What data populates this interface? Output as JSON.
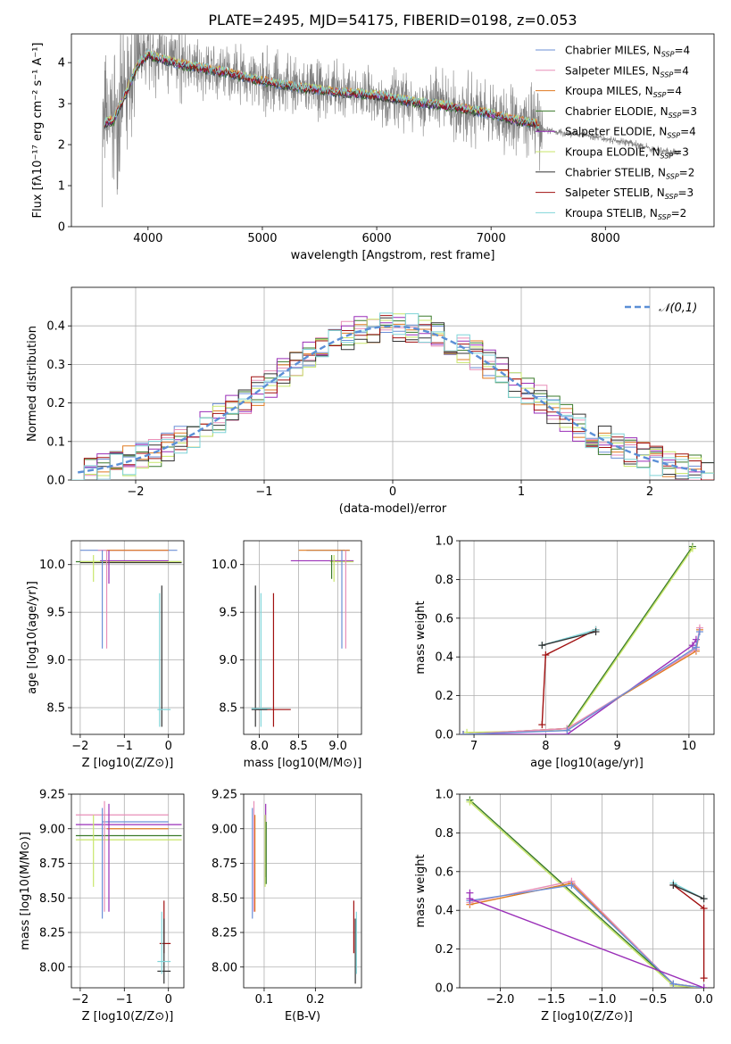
{
  "figure": {
    "title": "PLATE=2495, MJD=54175, FIBERID=0198, z=0.053"
  },
  "models": [
    {
      "name": "Chabrier MILES",
      "nssp": "4",
      "color": "#6b8fd6"
    },
    {
      "name": "Salpeter MILES",
      "nssp": "4",
      "color": "#e88fb8"
    },
    {
      "name": "Kroupa MILES",
      "nssp": "4",
      "color": "#e07a20"
    },
    {
      "name": "Chabrier ELODIE",
      "nssp": "3",
      "color": "#3a7a2a"
    },
    {
      "name": "Salpeter ELODIE",
      "nssp": "4",
      "color": "#9a2fb8"
    },
    {
      "name": "Kroupa ELODIE",
      "nssp": "3",
      "color": "#c8e66a"
    },
    {
      "name": "Chabrier STELIB",
      "nssp": "2",
      "color": "#333333"
    },
    {
      "name": "Salpeter STELIB",
      "nssp": "3",
      "color": "#a01010"
    },
    {
      "name": "Kroupa STELIB",
      "nssp": "2",
      "color": "#7fd4d8"
    }
  ],
  "chart_data": [
    {
      "id": "spectrum",
      "type": "line",
      "title": "PLATE=2495, MJD=54175, FIBERID=0198, z=0.053",
      "xlabel": "wavelength [Angstrom, rest frame]",
      "ylabel": "Flux [fλ10⁻¹⁷ erg cm⁻² s⁻¹ A⁻¹]",
      "xlim": [
        3330,
        8950
      ],
      "ylim": [
        0,
        4.7
      ],
      "xticks": [
        4000,
        5000,
        6000,
        7000,
        8000
      ],
      "yticks": [
        0,
        1,
        2,
        3,
        4
      ],
      "grid": false,
      "legend": "upper right",
      "data_series": {
        "name": "data",
        "color": "#808080",
        "x_range": [
          3600,
          8650
        ]
      },
      "model_curve": {
        "x": [
          3600,
          3700,
          3800,
          3900,
          4000,
          4100,
          4300,
          4500,
          4700,
          5000,
          5300,
          5600,
          6000,
          6300,
          6600,
          6800,
          7000,
          7200,
          7400
        ],
        "y": [
          2.5,
          2.6,
          3.2,
          3.9,
          4.2,
          4.1,
          3.95,
          3.85,
          3.75,
          3.55,
          3.4,
          3.3,
          3.2,
          3.05,
          2.95,
          2.85,
          2.75,
          2.6,
          2.5
        ]
      },
      "data_curve": {
        "x": [
          7400,
          7600,
          7800,
          8000,
          8200,
          8400,
          8600
        ],
        "y": [
          2.4,
          2.3,
          2.25,
          2.15,
          2.05,
          1.9,
          1.8
        ]
      }
    },
    {
      "id": "residuals",
      "type": "line",
      "xlabel": "(data-model)/error",
      "ylabel": "Normed distribution",
      "xlim": [
        -2.5,
        2.5
      ],
      "ylim": [
        0,
        0.5
      ],
      "xticks": [
        -2,
        -1,
        0,
        1,
        2
      ],
      "yticks": [
        0.0,
        0.1,
        0.2,
        0.3,
        0.4
      ],
      "grid": true,
      "legend": "upper right",
      "reference": {
        "name": "𝒩(0,1)",
        "color": "#5b8fd6",
        "style": "dashed"
      },
      "bin_width": 0.1,
      "hist_x_start": -2.5
    },
    {
      "id": "age_vs_Z",
      "type": "scatter",
      "xlabel": "Z [log10(Z/Z⊙)]",
      "ylabel": "age [log10(age/yr)]",
      "xlim": [
        -2.2,
        0.35
      ],
      "ylim": [
        8.22,
        10.25
      ],
      "xticks": [
        -2,
        -1,
        0
      ],
      "yticks": [
        8.5,
        9.0,
        9.5,
        10.0
      ],
      "grid": true,
      "segments": [
        {
          "m": 0,
          "x": [
            -2.0,
            0.2
          ],
          "y": [
            10.15,
            10.15
          ]
        },
        {
          "m": 1,
          "x": [
            -1.6,
            0.0
          ],
          "y": [
            10.15,
            10.15
          ]
        },
        {
          "m": 2,
          "x": [
            -1.4,
            0.0
          ],
          "y": [
            10.15,
            10.15
          ]
        },
        {
          "m": 3,
          "x": [
            -2.1,
            0.3
          ],
          "y": [
            10.03,
            10.03
          ]
        },
        {
          "m": 5,
          "x": [
            -2.0,
            0.3
          ],
          "y": [
            10.03,
            10.03
          ]
        },
        {
          "m": 6,
          "x": [
            -2.0,
            0.3
          ],
          "y": [
            10.02,
            10.02
          ]
        },
        {
          "m": 4,
          "x": [
            -1.55,
            0.0
          ],
          "y": [
            10.04,
            10.04
          ]
        },
        {
          "m": 5,
          "x": [
            -1.7,
            -1.7
          ],
          "y": [
            9.82,
            10.1
          ]
        },
        {
          "m": 0,
          "x": [
            -1.5,
            -1.5
          ],
          "y": [
            9.12,
            10.15
          ]
        },
        {
          "m": 1,
          "x": [
            -1.4,
            -1.4
          ],
          "y": [
            9.12,
            10.15
          ]
        },
        {
          "m": 4,
          "x": [
            -1.35,
            -1.35
          ],
          "y": [
            9.8,
            10.15
          ]
        },
        {
          "m": 6,
          "x": [
            -0.15,
            -0.15
          ],
          "y": [
            8.3,
            9.78
          ]
        },
        {
          "m": 8,
          "x": [
            -0.2,
            -0.2
          ],
          "y": [
            8.3,
            9.7
          ]
        },
        {
          "m": 8,
          "x": [
            -0.25,
            0.05
          ],
          "y": [
            8.48,
            8.48
          ]
        }
      ]
    },
    {
      "id": "age_vs_mass",
      "type": "scatter",
      "xlabel": "mass [log10(M/M⊙)]",
      "ylabel": "",
      "xlim": [
        7.8,
        9.3
      ],
      "ylim": [
        8.22,
        10.25
      ],
      "xticks": [
        8.0,
        8.5,
        9.0
      ],
      "yticks": [
        8.5,
        9.0,
        9.5,
        10.0
      ],
      "grid": true,
      "segments": [
        {
          "m": 0,
          "x": [
            8.6,
            9.15
          ],
          "y": [
            10.15,
            10.15
          ]
        },
        {
          "m": 2,
          "x": [
            8.5,
            9.15
          ],
          "y": [
            10.15,
            10.15
          ]
        },
        {
          "m": 4,
          "x": [
            8.4,
            9.2
          ],
          "y": [
            10.04,
            10.04
          ]
        },
        {
          "m": 5,
          "x": [
            8.9,
            9.2
          ],
          "y": [
            10.03,
            10.03
          ]
        },
        {
          "m": 5,
          "x": [
            8.95,
            8.95
          ],
          "y": [
            9.82,
            10.1
          ]
        },
        {
          "m": 3,
          "x": [
            8.92,
            8.92
          ],
          "y": [
            9.85,
            10.1
          ]
        },
        {
          "m": 0,
          "x": [
            9.05,
            9.05
          ],
          "y": [
            9.12,
            10.15
          ]
        },
        {
          "m": 1,
          "x": [
            9.1,
            9.1
          ],
          "y": [
            9.12,
            10.15
          ]
        },
        {
          "m": 6,
          "x": [
            7.95,
            7.95
          ],
          "y": [
            8.3,
            9.78
          ]
        },
        {
          "m": 8,
          "x": [
            8.02,
            8.02
          ],
          "y": [
            8.3,
            9.7
          ]
        },
        {
          "m": 7,
          "x": [
            8.18,
            8.18
          ],
          "y": [
            8.3,
            9.7
          ]
        },
        {
          "m": 7,
          "x": [
            7.95,
            8.4
          ],
          "y": [
            8.48,
            8.48
          ]
        },
        {
          "m": 6,
          "x": [
            7.9,
            8.1
          ],
          "y": [
            8.48,
            8.48
          ]
        },
        {
          "m": 8,
          "x": [
            7.9,
            8.15
          ],
          "y": [
            8.49,
            8.49
          ]
        }
      ]
    },
    {
      "id": "massweight_vs_age",
      "type": "line",
      "xlabel": "age [log10(age/yr)]",
      "ylabel": "mass weight",
      "xlim": [
        6.8,
        10.35
      ],
      "ylim": [
        0,
        1.0
      ],
      "xticks": [
        7,
        8,
        9,
        10
      ],
      "yticks": [
        0.0,
        0.2,
        0.4,
        0.6,
        0.8,
        1.0
      ],
      "grid": true,
      "lines": [
        {
          "m": 3,
          "x": [
            6.85,
            8.3,
            10.05
          ],
          "y": [
            0.0,
            0.03,
            0.97
          ]
        },
        {
          "m": 5,
          "x": [
            6.9,
            8.3,
            10.05
          ],
          "y": [
            0.01,
            0.02,
            0.96
          ]
        },
        {
          "m": 4,
          "x": [
            6.85,
            8.3,
            10.05,
            10.1
          ],
          "y": [
            0.0,
            0.0,
            0.46,
            0.49
          ]
        },
        {
          "m": 2,
          "x": [
            6.85,
            8.3,
            10.1,
            10.15
          ],
          "y": [
            0.0,
            0.03,
            0.43,
            0.54
          ]
        },
        {
          "m": 1,
          "x": [
            6.85,
            8.3,
            10.1,
            10.15
          ],
          "y": [
            0.0,
            0.03,
            0.44,
            0.55
          ]
        },
        {
          "m": 0,
          "x": [
            6.85,
            8.3,
            10.1,
            10.15
          ],
          "y": [
            0.0,
            0.02,
            0.45,
            0.53
          ]
        },
        {
          "m": 7,
          "x": [
            7.95,
            8.0,
            8.7
          ],
          "y": [
            0.05,
            0.41,
            0.54
          ]
        },
        {
          "m": 8,
          "x": [
            7.95,
            8.7
          ],
          "y": [
            0.46,
            0.54
          ]
        },
        {
          "m": 6,
          "x": [
            7.95,
            8.7
          ],
          "y": [
            0.46,
            0.53
          ]
        }
      ]
    },
    {
      "id": "mass_vs_Z",
      "type": "scatter",
      "xlabel": "Z [log10(Z/Z⊙)]",
      "ylabel": "mass [log10(M/M⊙)]",
      "xlim": [
        -2.2,
        0.35
      ],
      "ylim": [
        7.85,
        9.25
      ],
      "xticks": [
        -2,
        -1,
        0
      ],
      "yticks": [
        8.0,
        8.25,
        8.5,
        8.75,
        9.0,
        9.25
      ],
      "grid": true,
      "segments": [
        {
          "m": 1,
          "x": [
            -2.1,
            0.0
          ],
          "y": [
            9.1,
            9.1
          ]
        },
        {
          "m": 4,
          "x": [
            -2.1,
            0.3
          ],
          "y": [
            9.03,
            9.03
          ]
        },
        {
          "m": 0,
          "x": [
            -1.5,
            0.0
          ],
          "y": [
            9.05,
            9.05
          ]
        },
        {
          "m": 2,
          "x": [
            -1.4,
            0.0
          ],
          "y": [
            9.0,
            9.0
          ]
        },
        {
          "m": 3,
          "x": [
            -2.1,
            0.3
          ],
          "y": [
            8.95,
            8.95
          ]
        },
        {
          "m": 5,
          "x": [
            -2.1,
            0.3
          ],
          "y": [
            8.92,
            8.92
          ]
        },
        {
          "m": 5,
          "x": [
            -1.7,
            -1.7
          ],
          "y": [
            8.58,
            9.1
          ]
        },
        {
          "m": 0,
          "x": [
            -1.5,
            -1.5
          ],
          "y": [
            8.35,
            9.15
          ]
        },
        {
          "m": 1,
          "x": [
            -1.45,
            -1.45
          ],
          "y": [
            8.4,
            9.2
          ]
        },
        {
          "m": 4,
          "x": [
            -1.35,
            -1.35
          ],
          "y": [
            8.4,
            9.18
          ]
        },
        {
          "m": 7,
          "x": [
            -0.1,
            -0.1
          ],
          "y": [
            8.1,
            8.48
          ]
        },
        {
          "m": 7,
          "x": [
            -0.2,
            0.05
          ],
          "y": [
            8.17,
            8.17
          ]
        },
        {
          "m": 6,
          "x": [
            -0.1,
            -0.1
          ],
          "y": [
            7.88,
            8.35
          ]
        },
        {
          "m": 6,
          "x": [
            -0.25,
            0.05
          ],
          "y": [
            7.97,
            7.97
          ]
        },
        {
          "m": 8,
          "x": [
            -0.15,
            -0.15
          ],
          "y": [
            7.95,
            8.4
          ]
        },
        {
          "m": 8,
          "x": [
            -0.25,
            0.05
          ],
          "y": [
            8.04,
            8.04
          ]
        }
      ]
    },
    {
      "id": "mass_vs_EBV",
      "type": "scatter",
      "xlabel": "E(B-V)",
      "ylabel": "",
      "xlim": [
        0.06,
        0.29
      ],
      "ylim": [
        7.85,
        9.25
      ],
      "xticks": [
        0.1,
        0.2
      ],
      "yticks": [
        8.0,
        8.25,
        8.5,
        8.75,
        9.0,
        9.25
      ],
      "grid": true,
      "segments": [
        {
          "m": 0,
          "x": [
            0.077,
            0.077
          ],
          "y": [
            8.35,
            9.15
          ]
        },
        {
          "m": 1,
          "x": [
            0.08,
            0.08
          ],
          "y": [
            8.4,
            9.2
          ]
        },
        {
          "m": 2,
          "x": [
            0.082,
            0.082
          ],
          "y": [
            8.4,
            9.1
          ]
        },
        {
          "m": 4,
          "x": [
            0.103,
            0.103
          ],
          "y": [
            8.65,
            9.18
          ]
        },
        {
          "m": 5,
          "x": [
            0.102,
            0.102
          ],
          "y": [
            8.58,
            9.1
          ]
        },
        {
          "m": 3,
          "x": [
            0.104,
            0.104
          ],
          "y": [
            8.6,
            9.05
          ]
        },
        {
          "m": 7,
          "x": [
            0.275,
            0.275
          ],
          "y": [
            8.1,
            8.48
          ]
        },
        {
          "m": 6,
          "x": [
            0.278,
            0.278
          ],
          "y": [
            7.88,
            8.35
          ]
        },
        {
          "m": 8,
          "x": [
            0.28,
            0.28
          ],
          "y": [
            7.95,
            8.4
          ]
        }
      ]
    },
    {
      "id": "massweight_vs_Z",
      "type": "line",
      "xlabel": "Z [log10(Z/Z⊙)]",
      "ylabel": "mass weight",
      "xlim": [
        -2.4,
        0.1
      ],
      "ylim": [
        0,
        1.0
      ],
      "xticks": [
        -2.0,
        -1.5,
        -1.0,
        -0.5,
        0.0
      ],
      "yticks": [
        0.0,
        0.2,
        0.4,
        0.6,
        0.8,
        1.0
      ],
      "grid": true,
      "lines": [
        {
          "m": 3,
          "x": [
            -2.3,
            -0.3,
            0.0
          ],
          "y": [
            0.97,
            0.02,
            0.0
          ]
        },
        {
          "m": 5,
          "x": [
            -2.3,
            -0.3,
            0.0
          ],
          "y": [
            0.96,
            0.01,
            0.0
          ]
        },
        {
          "m": 2,
          "x": [
            -2.3,
            -1.3,
            -0.3,
            0.0
          ],
          "y": [
            0.43,
            0.54,
            0.02,
            0.0
          ]
        },
        {
          "m": 1,
          "x": [
            -2.3,
            -1.3,
            -0.3,
            0.0
          ],
          "y": [
            0.44,
            0.55,
            0.02,
            0.0
          ]
        },
        {
          "m": 0,
          "x": [
            -2.3,
            -1.3,
            -0.3,
            0.0
          ],
          "y": [
            0.45,
            0.53,
            0.02,
            0.0
          ]
        },
        {
          "m": 4,
          "x": [
            -2.3,
            -2.3,
            0.0
          ],
          "y": [
            0.49,
            0.46,
            0.0
          ]
        },
        {
          "m": 7,
          "x": [
            -0.3,
            0.0,
            0.0
          ],
          "y": [
            0.53,
            0.41,
            0.05
          ]
        },
        {
          "m": 8,
          "x": [
            -0.3,
            0.0
          ],
          "y": [
            0.54,
            0.46
          ]
        },
        {
          "m": 6,
          "x": [
            -0.3,
            0.0
          ],
          "y": [
            0.53,
            0.46
          ]
        }
      ]
    }
  ]
}
